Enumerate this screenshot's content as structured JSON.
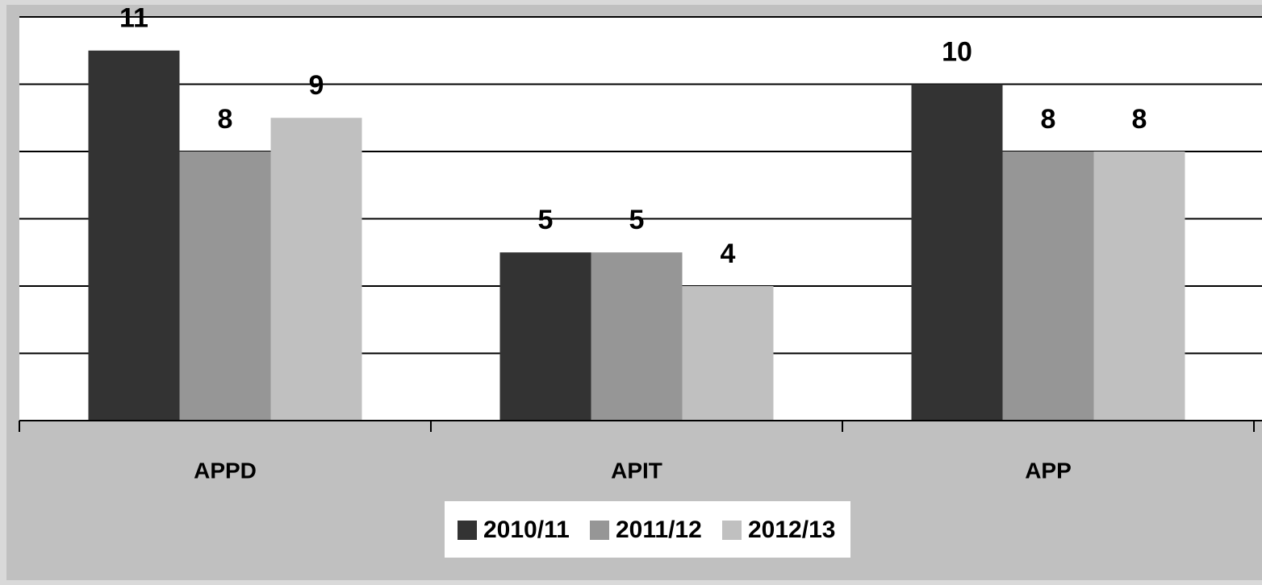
{
  "chart_data": {
    "type": "bar",
    "categories": [
      "APPD",
      "APIT",
      "APP"
    ],
    "series": [
      {
        "name": "2010/11",
        "color": "#333333",
        "values": [
          11,
          5,
          10
        ]
      },
      {
        "name": "2011/12",
        "color": "#969696",
        "values": [
          8,
          5,
          8
        ]
      },
      {
        "name": "2012/13",
        "color": "#c0c0c0",
        "values": [
          9,
          4,
          8
        ]
      }
    ],
    "ylim": [
      0,
      12
    ],
    "yticks": [
      0,
      2,
      4,
      6,
      8,
      10,
      12
    ],
    "grid": true,
    "legend": "bottom"
  }
}
